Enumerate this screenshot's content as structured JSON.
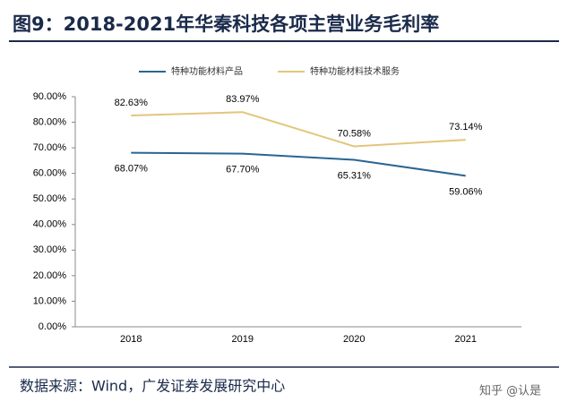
{
  "chart_data": {
    "type": "line",
    "title": "图9：2018-2021年华秦科技各项主营业务毛利率",
    "categories": [
      "2018",
      "2019",
      "2020",
      "2021"
    ],
    "series": [
      {
        "name": "特种功能材料产品",
        "color": "#2a6592",
        "values": [
          68.07,
          67.7,
          65.31,
          59.06
        ],
        "value_labels": [
          "68.07%",
          "67.70%",
          "65.31%",
          "59.06%"
        ]
      },
      {
        "name": "特种功能材料技术服务",
        "color": "#e3c57a",
        "values": [
          82.63,
          83.97,
          70.58,
          73.14
        ],
        "value_labels": [
          "82.63%",
          "83.97%",
          "70.58%",
          "73.14%"
        ]
      }
    ],
    "ylim": [
      0,
      90
    ],
    "yticks": [
      {
        "value": 0,
        "label": "0.00%"
      },
      {
        "value": 10,
        "label": "10.00%"
      },
      {
        "value": 20,
        "label": "20.00%"
      },
      {
        "value": 30,
        "label": "30.00%"
      },
      {
        "value": 40,
        "label": "40.00%"
      },
      {
        "value": 50,
        "label": "50.00%"
      },
      {
        "value": 60,
        "label": "60.00%"
      },
      {
        "value": 70,
        "label": "70.00%"
      },
      {
        "value": 80,
        "label": "80.00%"
      },
      {
        "value": 90,
        "label": "90.00%"
      }
    ],
    "legend": "top",
    "source": "数据来源：Wind，广发证券发展研究中心",
    "watermark": "知乎 @认是"
  }
}
